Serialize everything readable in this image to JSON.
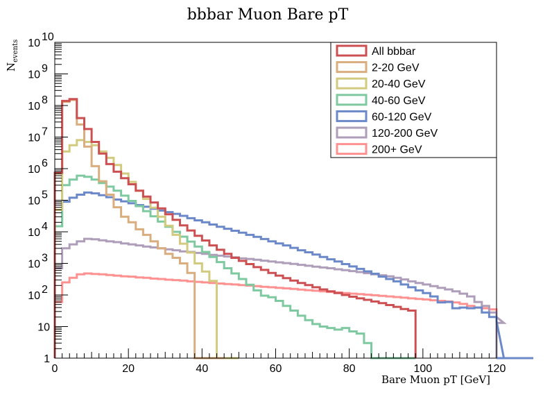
{
  "chart_data": {
    "type": "line",
    "style": "step-histogram",
    "title": "bbbar Muon Bare pT",
    "xlabel": "Bare Muon pT [GeV]",
    "ylabel": "N",
    "ylabel_subscript": "events",
    "xlim": [
      0,
      120
    ],
    "ylim": [
      1,
      10000000000
    ],
    "y_scale": "log",
    "grid": false,
    "legend_position": "top-right",
    "bin_width": 2,
    "x_ticks": [
      {
        "value": 0,
        "label": "0"
      },
      {
        "value": 20,
        "label": "20"
      },
      {
        "value": 40,
        "label": "40"
      },
      {
        "value": 60,
        "label": "60"
      },
      {
        "value": 80,
        "label": "80"
      },
      {
        "value": 100,
        "label": "100"
      },
      {
        "value": 120,
        "label": "120"
      }
    ],
    "y_ticks": [
      {
        "value": 1,
        "base": "1",
        "exp": ""
      },
      {
        "value": 10,
        "base": "10",
        "exp": ""
      },
      {
        "value": 100,
        "base": "10",
        "exp": "2"
      },
      {
        "value": 1000,
        "base": "10",
        "exp": "3"
      },
      {
        "value": 10000,
        "base": "10",
        "exp": "4"
      },
      {
        "value": 100000,
        "base": "10",
        "exp": "5"
      },
      {
        "value": 1000000,
        "base": "10",
        "exp": "6"
      },
      {
        "value": 10000000,
        "base": "10",
        "exp": "7"
      },
      {
        "value": 100000000,
        "base": "10",
        "exp": "8"
      },
      {
        "value": 1000000000,
        "base": "10",
        "exp": "9"
      },
      {
        "value": 10000000000,
        "base": "10",
        "exp": "10"
      }
    ],
    "series": [
      {
        "name": "200+ GeV",
        "color": "#ff9191",
        "values": [
          60,
          250,
          350,
          450,
          480,
          460,
          450,
          430,
          410,
          390,
          380,
          360,
          350,
          330,
          320,
          305,
          295,
          285,
          270,
          260,
          250,
          240,
          230,
          222,
          215,
          205,
          198,
          190,
          182,
          175,
          168,
          162,
          155,
          148,
          142,
          136,
          130,
          125,
          120,
          115,
          110,
          106,
          102,
          98,
          94,
          90,
          86,
          82,
          78,
          75,
          72,
          68,
          65,
          62,
          58,
          52,
          45,
          40,
          38,
          35,
          20
        ]
      },
      {
        "name": "120-200 GeV",
        "color": "#ae9eb9",
        "values": [
          700,
          3000,
          4000,
          5000,
          6000,
          5800,
          5400,
          5000,
          4700,
          4300,
          4000,
          3700,
          3400,
          3200,
          3000,
          2800,
          2600,
          2400,
          2300,
          2150,
          2000,
          1850,
          1750,
          1650,
          1550,
          1450,
          1380,
          1300,
          1220,
          1150,
          1080,
          1020,
          960,
          900,
          840,
          790,
          740,
          700,
          650,
          610,
          570,
          530,
          490,
          450,
          420,
          390,
          350,
          310,
          270,
          240,
          215,
          190,
          168,
          150,
          130,
          110,
          90,
          60,
          45,
          28,
          20,
          13
        ]
      },
      {
        "name": "60-120 GeV",
        "color": "#6b88c8",
        "values": [
          15000,
          90000,
          120000,
          150000,
          175000,
          165000,
          145000,
          125000,
          105000,
          92000,
          80000,
          70000,
          62000,
          54000,
          47000,
          42000,
          37000,
          32000,
          27000,
          23000,
          20000,
          17000,
          14500,
          12500,
          10800,
          9400,
          8000,
          6900,
          5900,
          5000,
          4300,
          3700,
          3100,
          2600,
          2250,
          1900,
          1600,
          1350,
          1150,
          950,
          800,
          670,
          560,
          470,
          380,
          320,
          270,
          215,
          175,
          140,
          115,
          90,
          58,
          60,
          38,
          40,
          38,
          40,
          28,
          20,
          15,
          1,
          1,
          1,
          1,
          1
        ]
      },
      {
        "name": "40-60 GeV",
        "color": "#7ec9a0",
        "values": [
          15000,
          300000,
          450000,
          600000,
          550000,
          450000,
          350000,
          270000,
          200000,
          140000,
          95000,
          65000,
          45000,
          31000,
          21000,
          14500,
          10000,
          7000,
          4900,
          3400,
          2300,
          1600,
          1100,
          700,
          480,
          320,
          210,
          140,
          95,
          85,
          65,
          45,
          32,
          22,
          16,
          12,
          10,
          9,
          8,
          9,
          7,
          6,
          3,
          1,
          1,
          1,
          1,
          1,
          1
        ]
      },
      {
        "name": "20-40 GeV",
        "color": "#d2ca7e",
        "values": [
          50000,
          3500000,
          5500000,
          8000000,
          7000000,
          5500000,
          3500000,
          2200000,
          1300000,
          700000,
          380000,
          200000,
          110000,
          58000,
          30000,
          15500,
          8000,
          4200,
          2200,
          1000,
          550,
          280,
          1,
          1,
          1
        ]
      },
      {
        "name": "2-20 GeV",
        "color": "#d9ad7e",
        "values": [
          700000,
          130000000,
          150000000,
          25000000,
          5000000,
          1200000,
          400000,
          150000,
          60000,
          30000,
          20000,
          12000,
          8000,
          5000,
          3000,
          2000,
          1500,
          1000,
          500,
          1,
          1,
          1,
          1
        ]
      },
      {
        "name": "All bbbar",
        "color": "#cc4f52",
        "values": [
          750000,
          140000000,
          160000000,
          40000000,
          18000000,
          7000000,
          3000000,
          1400000,
          800000,
          500000,
          320000,
          200000,
          130000,
          85000,
          55000,
          36000,
          24000,
          16000,
          11000,
          7500,
          5300,
          3700,
          2700,
          2000,
          1500,
          1200,
          950,
          760,
          620,
          500,
          410,
          340,
          285,
          240,
          205,
          175,
          150,
          130,
          115,
          100,
          88,
          78,
          70,
          62,
          55,
          48,
          42,
          36,
          32
        ]
      }
    ],
    "legend_entries": [
      {
        "name": "All bbbar",
        "color": "#cc4f52"
      },
      {
        "name": "2-20 GeV",
        "color": "#d9ad7e"
      },
      {
        "name": "20-40 GeV",
        "color": "#d2ca7e"
      },
      {
        "name": "40-60 GeV",
        "color": "#7ec9a0"
      },
      {
        "name": "60-120 GeV",
        "color": "#6b88c8"
      },
      {
        "name": "120-200 GeV",
        "color": "#ae9eb9"
      },
      {
        "name": "200+ GeV",
        "color": "#ff9191"
      }
    ]
  }
}
